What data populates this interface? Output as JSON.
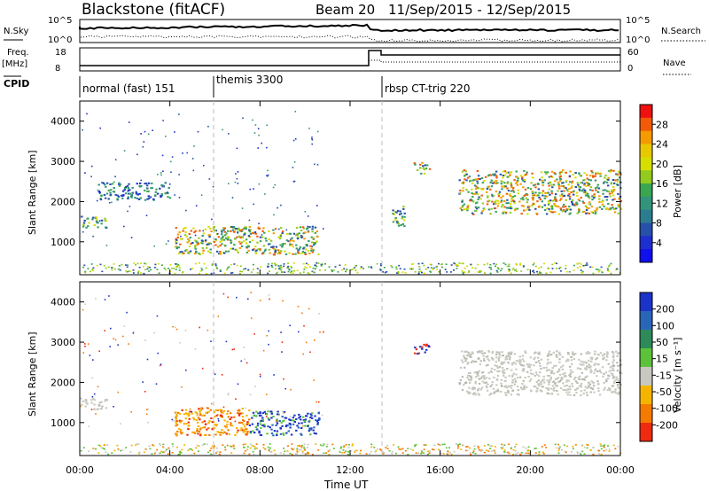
{
  "header": {
    "radar": "Blackstone (fitACF)",
    "beam": "Beam 20",
    "date_range": "11/Sep/2015 - 12/Sep/2015"
  },
  "strips": {
    "nsky_label": "N.Sky",
    "nsky_top": "10^5",
    "nsky_bottom": "10^0",
    "nsearch_label": "N.Search",
    "nsearch_top": "10^5",
    "nsearch_bottom": "10^0",
    "freq_label": "Freq.",
    "freq_unit": "[MHz]",
    "freq_top": "18",
    "freq_bottom": "8",
    "nave_label": "Nave",
    "nave_top": "60",
    "nave_bottom": "0",
    "cpid_label": "CPID"
  },
  "modes": [
    {
      "name": "normal (fast) 151",
      "start_hour": 0
    },
    {
      "name": "themis 3300",
      "start_hour": 6.0
    },
    {
      "name": "rbsp CT-trig 220",
      "start_hour": 13.5
    }
  ],
  "colorbars": {
    "power": {
      "label": "Power [dB]",
      "ticks": [
        "28",
        "24",
        "20",
        "16",
        "12",
        "8",
        "4"
      ],
      "colors": [
        "#ee1111",
        "#f25a08",
        "#f59a00",
        "#e8c800",
        "#d6de00",
        "#93ca1e",
        "#3aa652",
        "#33947c",
        "#2c7c90",
        "#2650aa",
        "#1e2fd0",
        "#1010ee"
      ]
    },
    "velocity": {
      "label": "Velocity [m s⁻¹]",
      "ticks": [
        "200",
        "100",
        "50",
        "15",
        "-15",
        "-50",
        "-100",
        "-200"
      ],
      "colors": [
        "#1a33c8",
        "#2a66b8",
        "#2f8a5a",
        "#5cc23a",
        "#c8c8c0",
        "#f5b400",
        "#f57a00",
        "#ee2a10"
      ]
    }
  },
  "chart_data": [
    {
      "type": "heatmap",
      "title": "Power",
      "ylabel": "Slant Range [km]",
      "xlabel": "Time UT",
      "x_ticks": [
        "00:00",
        "04:00",
        "08:00",
        "12:00",
        "16:00",
        "20:00",
        "00:00"
      ],
      "y_ticks": [
        "1000",
        "2000",
        "3000",
        "4000"
      ],
      "xlim_hours": [
        0,
        24
      ],
      "ylim_km": [
        180,
        4500
      ],
      "echo_regions": [
        {
          "t_start": 0.0,
          "t_end": 1.2,
          "r_min": 1350,
          "r_max": 1650,
          "level": "mid"
        },
        {
          "t_start": 0.8,
          "t_end": 4.0,
          "r_min": 2050,
          "r_max": 2500,
          "level": "low"
        },
        {
          "t_start": 4.2,
          "t_end": 10.6,
          "r_min": 700,
          "r_max": 1400,
          "level": "high"
        },
        {
          "t_start": 13.8,
          "t_end": 14.4,
          "r_min": 1350,
          "r_max": 1900,
          "level": "mid"
        },
        {
          "t_start": 14.8,
          "t_end": 15.5,
          "r_min": 2700,
          "r_max": 3000,
          "level": "high"
        },
        {
          "t_start": 16.8,
          "t_end": 24.0,
          "r_min": 1700,
          "r_max": 2800,
          "level": "high"
        }
      ]
    },
    {
      "type": "heatmap",
      "title": "Velocity",
      "ylabel": "Slant Range [km]",
      "xlabel": "Time UT",
      "x_ticks": [
        "00:00",
        "04:00",
        "08:00",
        "12:00",
        "16:00",
        "20:00",
        "00:00"
      ],
      "y_ticks": [
        "1000",
        "2000",
        "3000",
        "4000"
      ],
      "xlim_hours": [
        0,
        24
      ],
      "ylim_km": [
        180,
        4500
      ],
      "echo_regions": [
        {
          "t_start": 0.0,
          "t_end": 1.2,
          "r_min": 1350,
          "r_max": 1650,
          "velocity": "ground"
        },
        {
          "t_start": 4.2,
          "t_end": 7.5,
          "r_min": 700,
          "r_max": 1400,
          "velocity": "-50 to -100"
        },
        {
          "t_start": 7.5,
          "t_end": 10.6,
          "r_min": 700,
          "r_max": 1300,
          "velocity": "100 to 200"
        },
        {
          "t_start": 14.8,
          "t_end": 15.5,
          "r_min": 2700,
          "r_max": 3000,
          "velocity": "-200"
        },
        {
          "t_start": 16.8,
          "t_end": 24.0,
          "r_min": 1700,
          "r_max": 2800,
          "velocity": "ground"
        }
      ]
    }
  ],
  "xlabel": "Time UT",
  "ylabel": "Slant Range [km]"
}
